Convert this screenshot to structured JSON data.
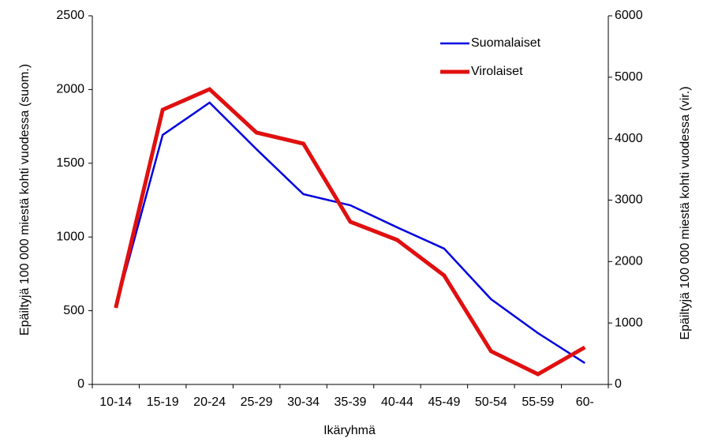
{
  "chart_data": {
    "type": "line",
    "x_label": "Ikäryhmä",
    "y_label": "Epäiltyjä 100 000 miestä kohti vuodessa (suom.)",
    "y2_label": "Epäiltyjä 100 000 miestä kohti vuodessa (vir.)",
    "categories": [
      "10-14",
      "15-19",
      "20-24",
      "25-29",
      "30-34",
      "35-39",
      "40-44",
      "45-49",
      "50-54",
      "55-59",
      "60-"
    ],
    "series": [
      {
        "name": "Suomalaiset",
        "color": "#0000e0",
        "values": [
          520,
          1692,
          1911,
          1595,
          1290,
          1215,
          1065,
          921,
          578,
          348,
          145
        ]
      },
      {
        "name": "Virolaiset",
        "color": "#e01010",
        "axis": "y2",
        "values": [
          1246,
          4471,
          4805,
          4099,
          3919,
          2647,
          2351,
          1773,
          540,
          167,
          604
        ]
      }
    ],
    "ylim": [
      0,
      2500
    ],
    "yticks": [
      0,
      500,
      1000,
      1500,
      2000,
      2500
    ],
    "y2lim": [
      0,
      6000
    ],
    "y2ticks": [
      0,
      1000,
      2000,
      3000,
      4000,
      5000,
      6000
    ],
    "legend": "top-right"
  }
}
